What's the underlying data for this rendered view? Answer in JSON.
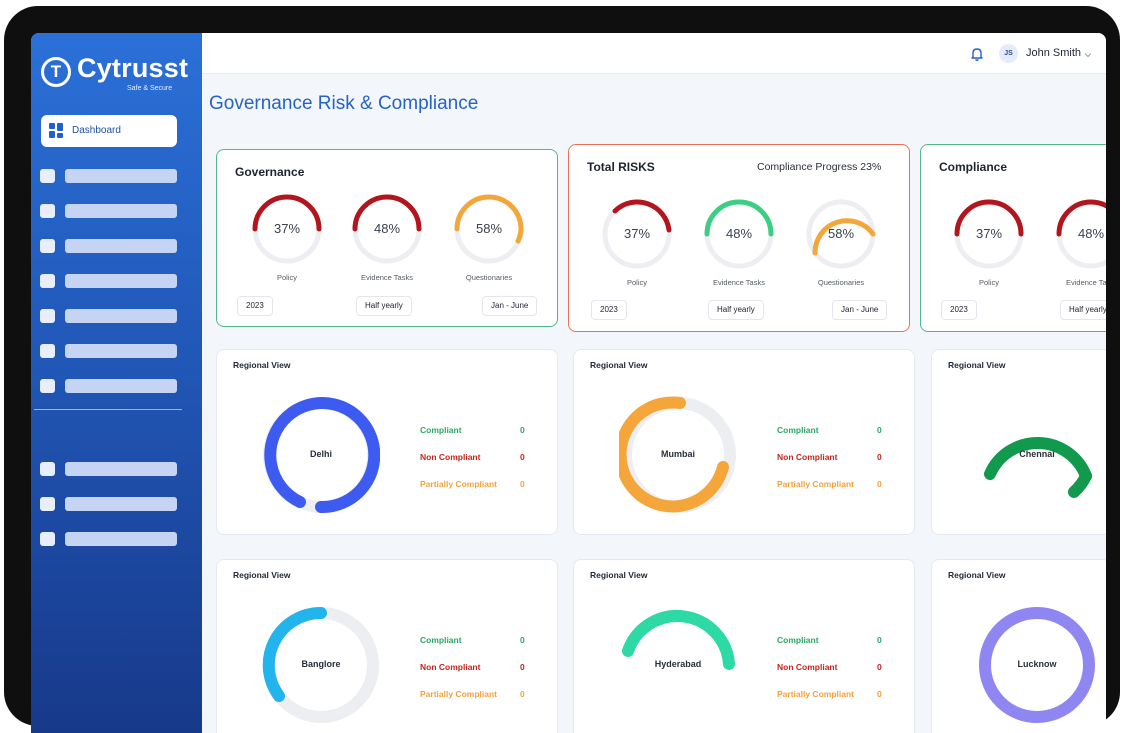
{
  "brand": {
    "name": "Cytrusst",
    "tagline": "Safe & Secure"
  },
  "sidebar": {
    "active_item": "Dashboard"
  },
  "header": {
    "user_initials": "JS",
    "user_name": "John Smith"
  },
  "page": {
    "title": "Governance Risk & Compliance"
  },
  "colors": {
    "green": "#2aa864",
    "red": "#d63a32",
    "orange": "#f2a23c",
    "blue_primary": "#2563c4"
  },
  "summary_cards": [
    {
      "title": "Governance",
      "progress_text": "",
      "gauges": [
        {
          "pct": "37%",
          "label": "Policy"
        },
        {
          "pct": "48%",
          "label": "Evidence Tasks"
        },
        {
          "pct": "58%",
          "label": "Questionaries"
        }
      ],
      "filters": [
        "2023",
        "Half yearly",
        "Jan - June"
      ]
    },
    {
      "title": "Total RISKS",
      "progress_text": "Compliance Progress  23%",
      "gauges": [
        {
          "pct": "37%",
          "label": "Policy"
        },
        {
          "pct": "48%",
          "label": "Evidence Tasks"
        },
        {
          "pct": "58%",
          "label": "Questionaries"
        }
      ],
      "filters": [
        "2023",
        "Half yearly",
        "Jan - June"
      ]
    },
    {
      "title": "Compliance",
      "progress_text": "",
      "gauges": [
        {
          "pct": "37%",
          "label": "Policy"
        },
        {
          "pct": "48%",
          "label": "Evidence Ta"
        }
      ],
      "filters": [
        "2023",
        "Half yearly"
      ]
    }
  ],
  "regional": {
    "title": "Regional View",
    "legend": {
      "compliant": "Compliant",
      "non_compliant": "Non Compliant",
      "partial": "Partially Compliant"
    },
    "cities": [
      {
        "name": "Delhi",
        "compliant": "0",
        "non_compliant": "0",
        "partial": "0",
        "fill": 0.88
      },
      {
        "name": "Mumbai",
        "compliant": "0",
        "non_compliant": "0",
        "partial": "0",
        "fill": 0.72
      },
      {
        "name": "Chennai",
        "compliant": "",
        "non_compliant": "",
        "partial": "",
        "fill": 0.6
      },
      {
        "name": "Banglore",
        "compliant": "0",
        "non_compliant": "0",
        "partial": "0",
        "fill": 0.42
      },
      {
        "name": "Hyderabad",
        "compliant": "0",
        "non_compliant": "0",
        "partial": "0",
        "fill": 0.5
      },
      {
        "name": "Lucknow",
        "compliant": "",
        "non_compliant": "",
        "partial": "",
        "fill": 1.0
      }
    ]
  }
}
